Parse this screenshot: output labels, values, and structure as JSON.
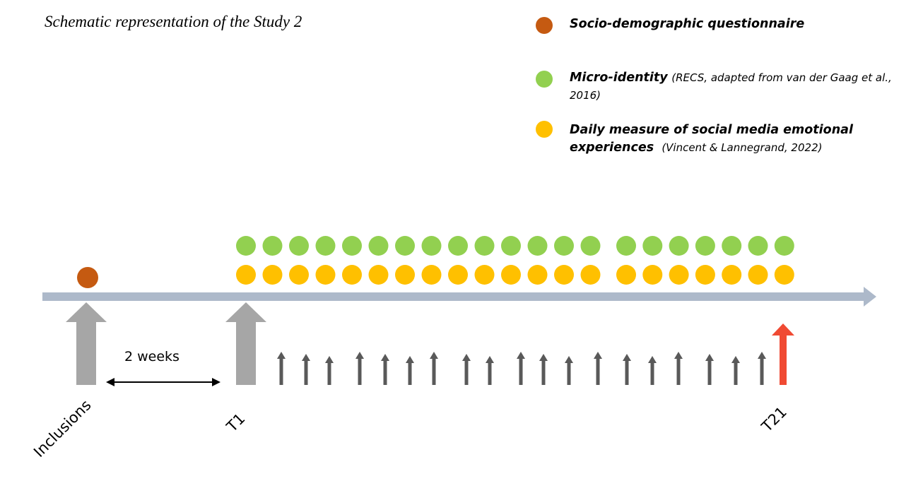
{
  "title": "Schematic representation of the Study 2",
  "legend": [
    {
      "label": "Socio-demographic questionnaire",
      "source": null
    },
    {
      "label": "Micro-identity",
      "source": "(RECS, adapted from van der Gaag et al., 2016)"
    },
    {
      "label": "Daily measure of social media emotional experiences",
      "source": "(Vincent & Lannegrand, 2022)"
    }
  ],
  "interval": "2 weeks",
  "timepoints": [
    "Inclusions",
    "T1",
    "T21"
  ]
}
